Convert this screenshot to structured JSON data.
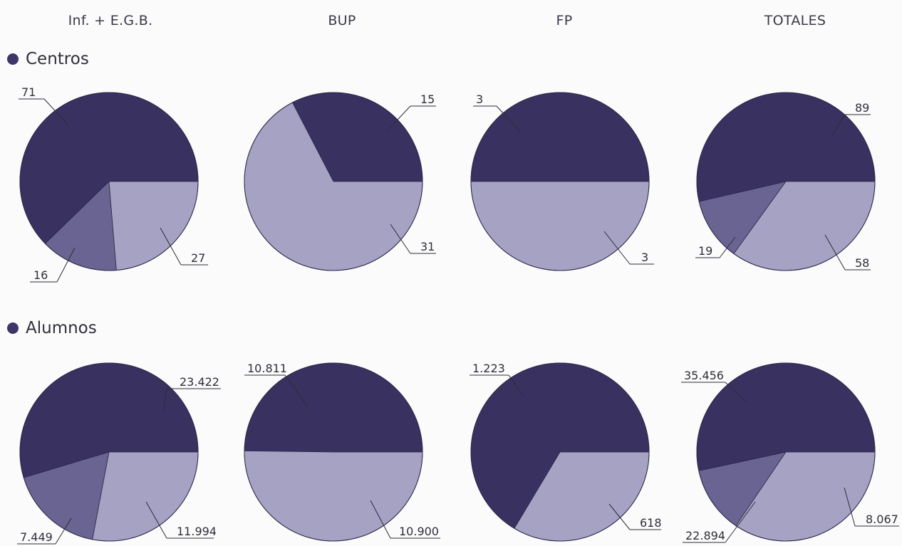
{
  "colors": {
    "dark": "#393160",
    "medium": "#6a6492",
    "light": "#a5a2c4",
    "bullet": "#3e3668"
  },
  "headers": [
    "Inf. + E.G.B.",
    "BUP",
    "FP",
    "TOTALES"
  ],
  "sections": [
    "Centros",
    "Alumnos"
  ],
  "chart_data": [
    {
      "type": "pie",
      "row": "Centros",
      "title": "Inf. + E.G.B.",
      "slices": [
        {
          "label": "71",
          "value": 71,
          "color": "dark"
        },
        {
          "label": "16",
          "value": 16,
          "color": "medium"
        },
        {
          "label": "27",
          "value": 27,
          "color": "light"
        }
      ]
    },
    {
      "type": "pie",
      "row": "Centros",
      "title": "BUP",
      "slices": [
        {
          "label": "15",
          "value": 15,
          "color": "dark"
        },
        {
          "label": "31",
          "value": 31,
          "color": "light"
        }
      ]
    },
    {
      "type": "pie",
      "row": "Centros",
      "title": "FP",
      "slices": [
        {
          "label": "3",
          "value": 3,
          "color": "dark"
        },
        {
          "label": "3",
          "value": 3,
          "color": "light"
        }
      ]
    },
    {
      "type": "pie",
      "row": "Centros",
      "title": "TOTALES",
      "slices": [
        {
          "label": "89",
          "value": 89,
          "color": "dark"
        },
        {
          "label": "19",
          "value": 19,
          "color": "medium"
        },
        {
          "label": "58",
          "value": 58,
          "color": "light"
        }
      ]
    },
    {
      "type": "pie",
      "row": "Alumnos",
      "title": "Inf. + E.G.B.",
      "slices": [
        {
          "label": "23.422",
          "value": 23422,
          "color": "dark"
        },
        {
          "label": "7.449",
          "value": 7449,
          "color": "medium"
        },
        {
          "label": "11.994",
          "value": 11994,
          "color": "light"
        }
      ]
    },
    {
      "type": "pie",
      "row": "Alumnos",
      "title": "BUP",
      "slices": [
        {
          "label": "10.811",
          "value": 10811,
          "color": "dark"
        },
        {
          "label": "10.900",
          "value": 10900,
          "color": "light"
        }
      ]
    },
    {
      "type": "pie",
      "row": "Alumnos",
      "title": "FP",
      "slices": [
        {
          "label": "1.223",
          "value": 1223,
          "color": "dark"
        },
        {
          "label": "618",
          "value": 618,
          "color": "light"
        }
      ]
    },
    {
      "type": "pie",
      "row": "Alumnos",
      "title": "TOTALES",
      "slices": [
        {
          "label": "35.456",
          "value": 35456,
          "color": "dark"
        },
        {
          "label": "8.067",
          "value": 8067,
          "color": "medium"
        },
        {
          "label": "22.894",
          "value": 22894,
          "color": "light"
        }
      ]
    }
  ]
}
